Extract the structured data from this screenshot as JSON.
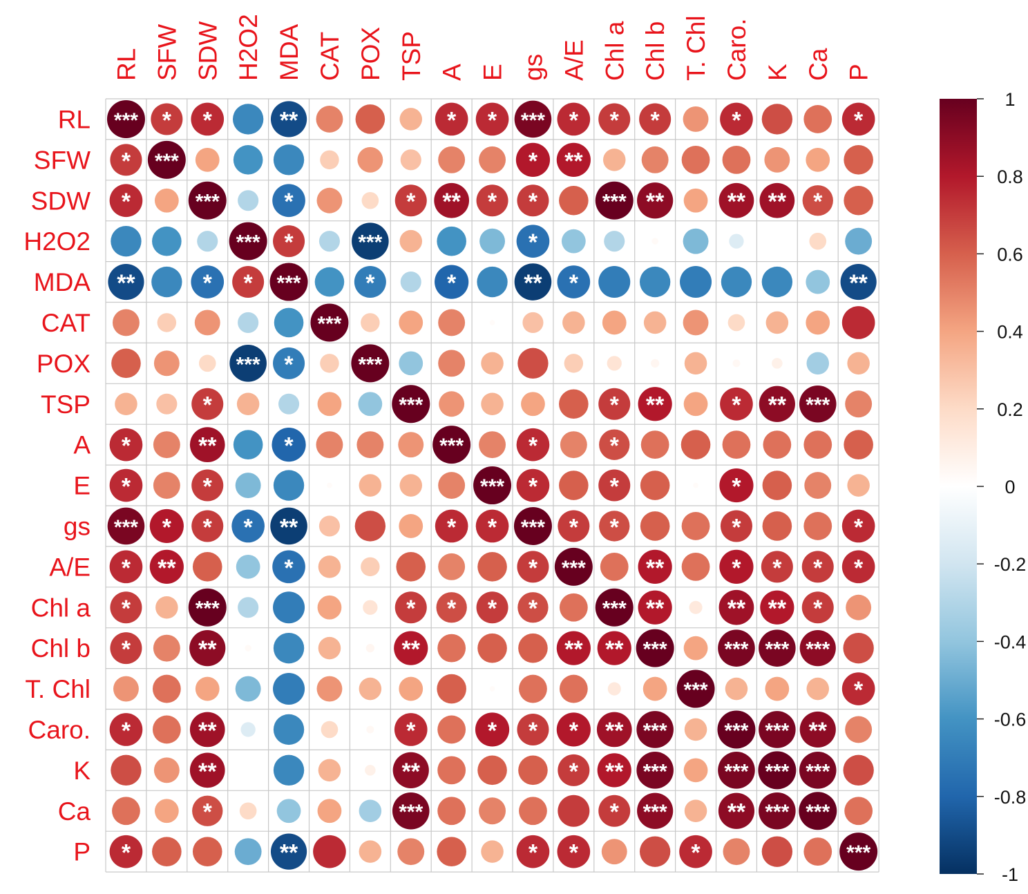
{
  "chart_data": {
    "type": "heatmap",
    "title": "",
    "variables": [
      "RL",
      "SFW",
      "SDW",
      "H2O2",
      "MDA",
      "CAT",
      "POX",
      "TSP",
      "A",
      "E",
      "gs",
      "A/E",
      "Chl a",
      "Chl b",
      "T. Chl",
      "Caro.",
      "K",
      "Ca",
      "P"
    ],
    "matrix": [
      [
        1.0,
        0.7,
        0.75,
        -0.65,
        -0.9,
        0.5,
        0.6,
        0.35,
        0.75,
        0.75,
        0.95,
        0.75,
        0.7,
        0.7,
        0.45,
        0.75,
        0.65,
        0.55,
        0.75
      ],
      [
        0.7,
        1.0,
        0.4,
        -0.6,
        -0.65,
        0.25,
        0.45,
        0.3,
        0.5,
        0.5,
        0.8,
        0.8,
        0.35,
        0.5,
        0.55,
        0.55,
        0.45,
        0.4,
        0.6
      ],
      [
        0.75,
        0.4,
        1.0,
        -0.3,
        -0.75,
        0.45,
        0.2,
        0.7,
        0.85,
        0.7,
        0.7,
        0.6,
        1.0,
        0.9,
        0.4,
        0.85,
        0.85,
        0.65,
        0.6
      ],
      [
        -0.65,
        -0.6,
        -0.3,
        1.0,
        0.7,
        -0.3,
        -0.95,
        0.35,
        -0.6,
        -0.45,
        -0.75,
        -0.4,
        -0.3,
        0.03,
        -0.45,
        -0.15,
        0.0,
        0.2,
        -0.5
      ],
      [
        -0.9,
        -0.65,
        -0.75,
        0.7,
        1.0,
        -0.6,
        -0.7,
        -0.3,
        -0.8,
        -0.65,
        -0.95,
        -0.75,
        -0.7,
        -0.65,
        -0.7,
        -0.65,
        -0.65,
        -0.4,
        -0.9
      ],
      [
        0.5,
        0.25,
        0.45,
        -0.3,
        -0.6,
        1.0,
        0.25,
        0.4,
        0.5,
        0.02,
        0.3,
        0.35,
        0.4,
        0.35,
        0.45,
        0.2,
        0.35,
        0.4,
        0.75
      ],
      [
        0.6,
        0.45,
        0.2,
        -0.95,
        -0.7,
        0.25,
        1.0,
        -0.4,
        0.5,
        0.35,
        0.65,
        0.25,
        0.15,
        0.05,
        0.35,
        0.04,
        0.08,
        -0.35,
        0.35
      ],
      [
        0.35,
        0.3,
        0.7,
        0.35,
        -0.3,
        0.4,
        -0.4,
        1.0,
        0.45,
        0.35,
        0.4,
        0.6,
        0.7,
        0.8,
        0.4,
        0.75,
        0.9,
        0.95,
        0.5
      ],
      [
        0.75,
        0.5,
        0.85,
        -0.6,
        -0.8,
        0.5,
        0.5,
        0.45,
        1.0,
        0.5,
        0.75,
        0.5,
        0.65,
        0.55,
        0.6,
        0.55,
        0.55,
        0.55,
        0.6
      ],
      [
        0.75,
        0.5,
        0.7,
        -0.45,
        -0.65,
        0.02,
        0.35,
        0.35,
        0.5,
        1.0,
        0.75,
        0.6,
        0.7,
        0.6,
        0.02,
        0.8,
        0.6,
        0.5,
        0.35
      ],
      [
        0.95,
        0.8,
        0.7,
        -0.75,
        -0.95,
        0.3,
        0.65,
        0.4,
        0.75,
        0.75,
        1.0,
        0.7,
        0.65,
        0.6,
        0.55,
        0.7,
        0.6,
        0.55,
        0.75
      ],
      [
        0.75,
        0.8,
        0.6,
        -0.4,
        -0.75,
        0.35,
        0.25,
        0.6,
        0.5,
        0.6,
        0.7,
        1.0,
        0.55,
        0.8,
        0.55,
        0.8,
        0.7,
        0.7,
        0.75
      ],
      [
        0.7,
        0.35,
        1.0,
        -0.3,
        -0.7,
        0.4,
        0.15,
        0.7,
        0.65,
        0.7,
        0.65,
        0.55,
        1.0,
        0.8,
        0.12,
        0.85,
        0.8,
        0.7,
        0.45
      ],
      [
        0.7,
        0.5,
        0.9,
        0.03,
        -0.65,
        0.35,
        0.05,
        0.8,
        0.55,
        0.6,
        0.6,
        0.8,
        0.8,
        1.0,
        0.4,
        0.95,
        0.95,
        0.9,
        0.65
      ],
      [
        0.45,
        0.55,
        0.4,
        -0.45,
        -0.7,
        0.45,
        0.35,
        0.4,
        0.6,
        0.02,
        0.55,
        0.55,
        0.12,
        0.4,
        1.0,
        0.35,
        0.4,
        0.35,
        0.75
      ],
      [
        0.75,
        0.55,
        0.85,
        -0.15,
        -0.65,
        0.2,
        0.04,
        0.75,
        0.55,
        0.8,
        0.7,
        0.8,
        0.85,
        0.95,
        0.35,
        1.0,
        0.95,
        0.9,
        0.5
      ],
      [
        0.65,
        0.45,
        0.85,
        0.0,
        -0.65,
        0.35,
        0.08,
        0.9,
        0.55,
        0.6,
        0.6,
        0.7,
        0.8,
        0.95,
        0.4,
        0.95,
        1.0,
        0.95,
        0.65
      ],
      [
        0.55,
        0.4,
        0.65,
        0.2,
        -0.4,
        0.4,
        -0.35,
        0.95,
        0.55,
        0.5,
        0.55,
        0.7,
        0.7,
        0.9,
        0.35,
        0.9,
        0.95,
        1.0,
        0.55
      ],
      [
        0.75,
        0.6,
        0.6,
        -0.5,
        -0.9,
        0.75,
        0.35,
        0.5,
        0.6,
        0.35,
        0.75,
        0.75,
        0.45,
        0.65,
        0.75,
        0.5,
        0.65,
        0.55,
        1.0
      ]
    ],
    "significance": [
      [
        "***",
        "*",
        "*",
        "",
        "**",
        "",
        "",
        "",
        "*",
        "*",
        "***",
        "*",
        "*",
        "*",
        "",
        "*",
        "",
        "",
        "*"
      ],
      [
        "*",
        "***",
        "",
        "",
        "",
        "",
        "",
        "",
        "",
        "",
        "*",
        "**",
        "",
        "",
        "",
        "",
        "",
        "",
        ""
      ],
      [
        "*",
        "",
        "***",
        "",
        "*",
        "",
        "",
        "*",
        "**",
        "*",
        "*",
        "",
        "***",
        "**",
        "",
        "**",
        "**",
        "*",
        ""
      ],
      [
        "",
        "",
        "",
        "***",
        "*",
        "",
        "***",
        "",
        "",
        "",
        "*",
        "",
        "",
        "",
        "",
        "",
        "",
        "",
        ""
      ],
      [
        "**",
        "",
        "*",
        "*",
        "***",
        "",
        "*",
        "",
        "*",
        "",
        "**",
        "*",
        "",
        "",
        "",
        "",
        "",
        "",
        "**"
      ],
      [
        "",
        "",
        "",
        "",
        "",
        "***",
        "",
        "",
        "",
        "",
        "",
        "",
        "",
        "",
        "",
        "",
        "",
        "",
        ""
      ],
      [
        "",
        "",
        "",
        "***",
        "*",
        "",
        "***",
        "",
        "",
        "",
        "",
        "",
        "",
        "",
        "",
        "",
        "",
        "",
        ""
      ],
      [
        "",
        "",
        "*",
        "",
        "",
        "",
        "",
        "***",
        "",
        "",
        "",
        "",
        "*",
        "**",
        "",
        "*",
        "**",
        "***",
        ""
      ],
      [
        "*",
        "",
        "**",
        "",
        "*",
        "",
        "",
        "",
        "***",
        "",
        "*",
        "",
        "*",
        "",
        "",
        "",
        "",
        "",
        ""
      ],
      [
        "*",
        "",
        "*",
        "",
        "",
        "",
        "",
        "",
        "",
        "***",
        "*",
        "",
        "*",
        "",
        "",
        "*",
        "",
        "",
        ""
      ],
      [
        "***",
        "*",
        "*",
        "*",
        "**",
        "",
        "",
        "",
        "*",
        "*",
        "***",
        "*",
        "*",
        "",
        "",
        "*",
        "",
        "",
        "*"
      ],
      [
        "*",
        "**",
        "",
        "",
        "*",
        "",
        "",
        "",
        "",
        "",
        "*",
        "***",
        "",
        "**",
        "",
        "*",
        "*",
        "*",
        "*"
      ],
      [
        "*",
        "",
        "***",
        "",
        "",
        "",
        "",
        "*",
        "*",
        "*",
        "*",
        "",
        "***",
        "**",
        "",
        "**",
        "**",
        "*",
        ""
      ],
      [
        "*",
        "",
        "**",
        "",
        "",
        "",
        "",
        "**",
        "",
        "",
        "",
        "**",
        "**",
        "***",
        "",
        "***",
        "***",
        "***",
        ""
      ],
      [
        "",
        "",
        "",
        "",
        "",
        "",
        "",
        "",
        "",
        "",
        "",
        "",
        "",
        "",
        "***",
        "",
        "",
        "",
        "*"
      ],
      [
        "*",
        "",
        "**",
        "",
        "",
        "",
        "",
        "*",
        "",
        "*",
        "*",
        "*",
        "**",
        "***",
        "",
        "***",
        "***",
        "**",
        ""
      ],
      [
        "",
        "",
        "**",
        "",
        "",
        "",
        "",
        "**",
        "",
        "",
        "",
        "*",
        "**",
        "***",
        "",
        "***",
        "***",
        "***",
        ""
      ],
      [
        "",
        "",
        "*",
        "",
        "",
        "",
        "",
        "***",
        "",
        "",
        "",
        "",
        "*",
        "***",
        "",
        "**",
        "***",
        "***",
        ""
      ],
      [
        "*",
        "",
        "",
        "",
        "**",
        "",
        "",
        "",
        "",
        "",
        "*",
        "*",
        "",
        "",
        "*",
        "",
        "",
        "",
        "***"
      ]
    ],
    "colorbar": {
      "range": [
        -1,
        1
      ],
      "ticks": [
        "1",
        "0.8",
        "0.6",
        "0.4",
        "0.2",
        "0",
        "-0.2",
        "-0.4",
        "-0.6",
        "-0.8",
        "-1"
      ],
      "colors": [
        "#67001f",
        "#b2182b",
        "#d6604d",
        "#f4a582",
        "#fddbc7",
        "#ffffff",
        "#d1e5f0",
        "#92c5de",
        "#4393c3",
        "#2166ac",
        "#053061"
      ]
    },
    "label_color": "#e8141b"
  }
}
